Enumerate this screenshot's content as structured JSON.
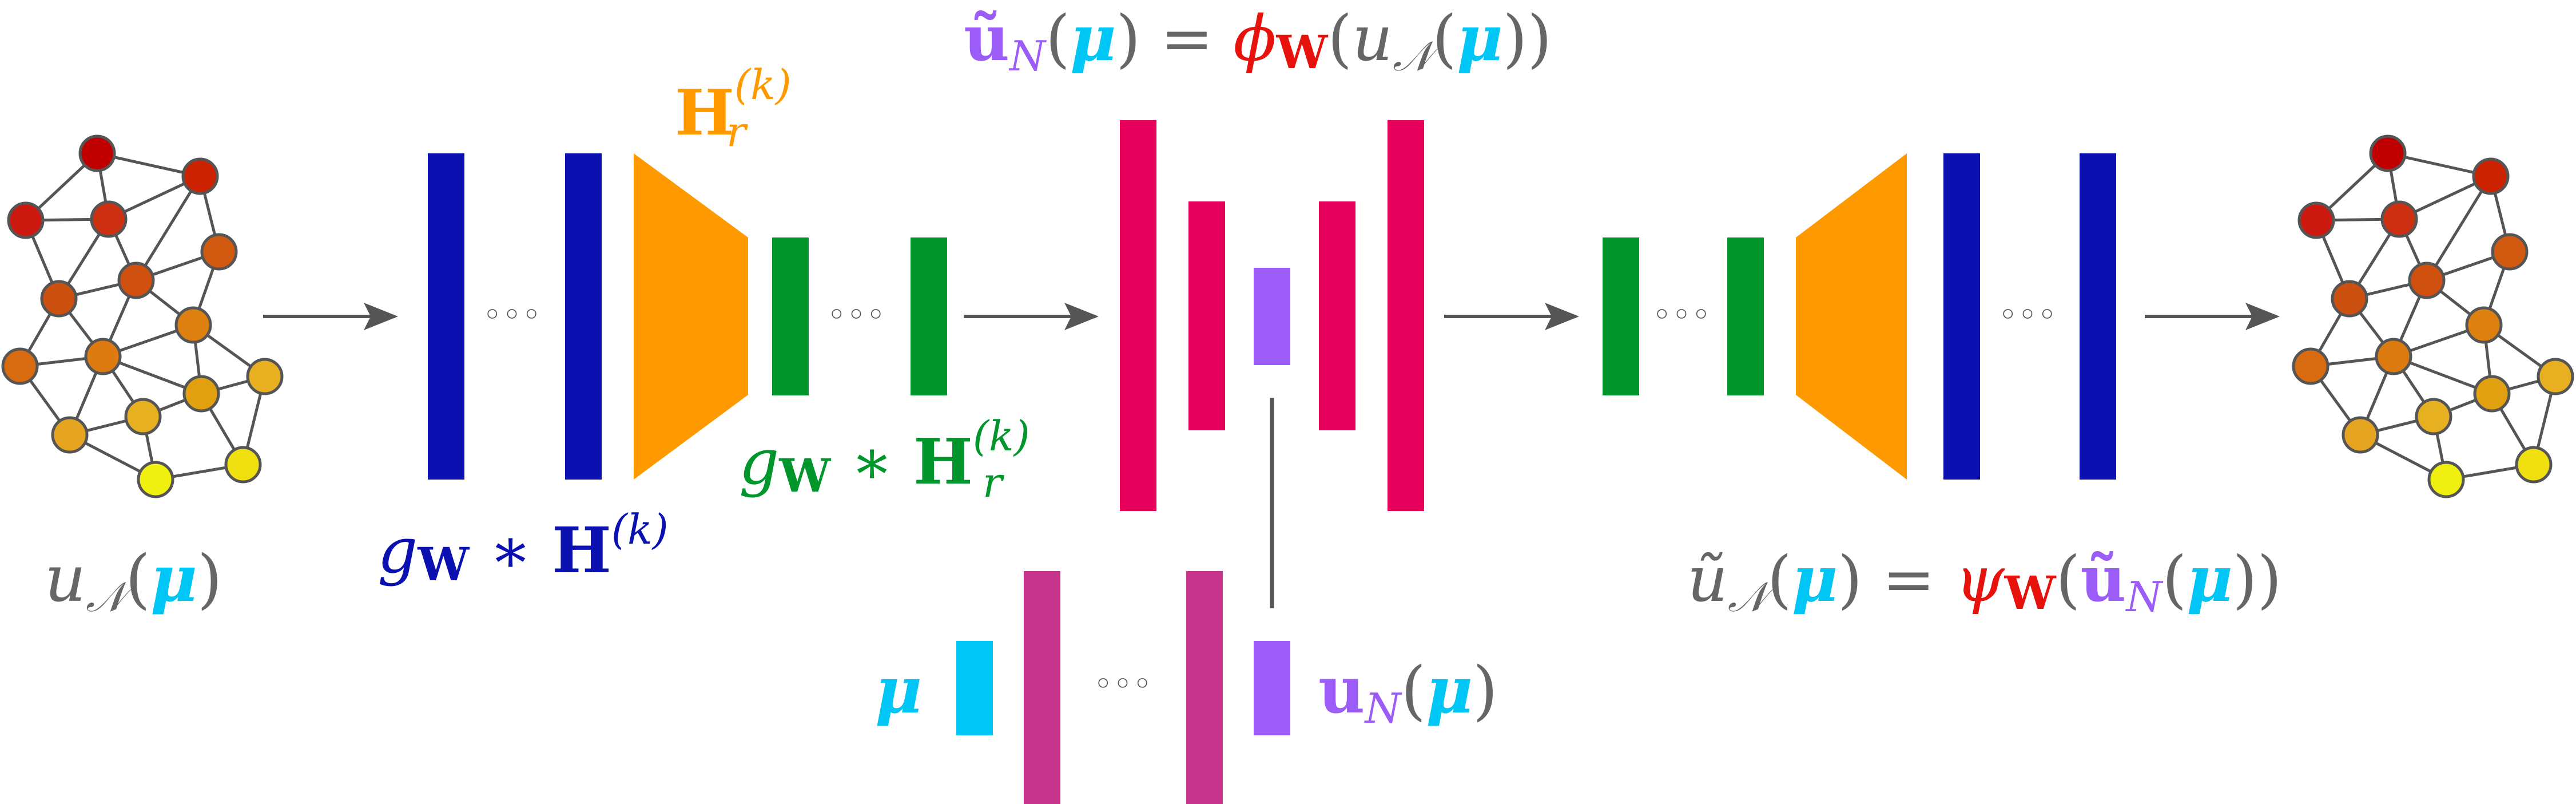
{
  "colors": {
    "blue": "#0a11b0",
    "orange": "#ff9900",
    "green": "#00962b",
    "pink": "#e8005d",
    "magenta": "#c6338b",
    "violet": "#9b5cf8",
    "cyan": "#00c6f5",
    "gray": "#666666",
    "red": "#e8120c",
    "edge": "#555555"
  },
  "labels": {
    "u_left": {
      "base": "u",
      "sub": "𝒩",
      "open": "(",
      "mu": "μ",
      "close": ")"
    },
    "gw_H": {
      "g": "g",
      "w": "W",
      "star": " ∗ ",
      "H": "H",
      "sup": "(k)"
    },
    "H_r": {
      "H": "H",
      "sub": "r",
      "sup": "(k)"
    },
    "gw_Hr": {
      "g": "g",
      "w": "W",
      "star": " ∗ ",
      "H": "H",
      "sub": "r",
      "sup": "(k)"
    },
    "top_eq": {
      "lhs": "ũ",
      "lhs_sub": "N",
      "open1": "(",
      "mu1": "μ",
      "close1": ")",
      "eq": " = ",
      "phi": "ϕ",
      "w": "W",
      "open2": "(",
      "u": "u",
      "u_sub": "𝒩",
      "open3": "(",
      "mu2": "μ",
      "close3": "))"
    },
    "mu_in": "μ",
    "uN_out": {
      "u": "u",
      "sub": "N",
      "open": "(",
      "mu": "μ",
      "close": ")"
    },
    "right_eq": {
      "lhs": "ũ",
      "lhs_sub": "𝒩",
      "open1": "(",
      "mu1": "μ",
      "close1": ")",
      "eq": " = ",
      "psi": "ψ",
      "w": "W",
      "open2": "(",
      "u": "ũ",
      "u_sub": "N",
      "open3": "(",
      "mu2": "μ",
      "close3": "))"
    },
    "ellipsis": "◦◦◦"
  }
}
